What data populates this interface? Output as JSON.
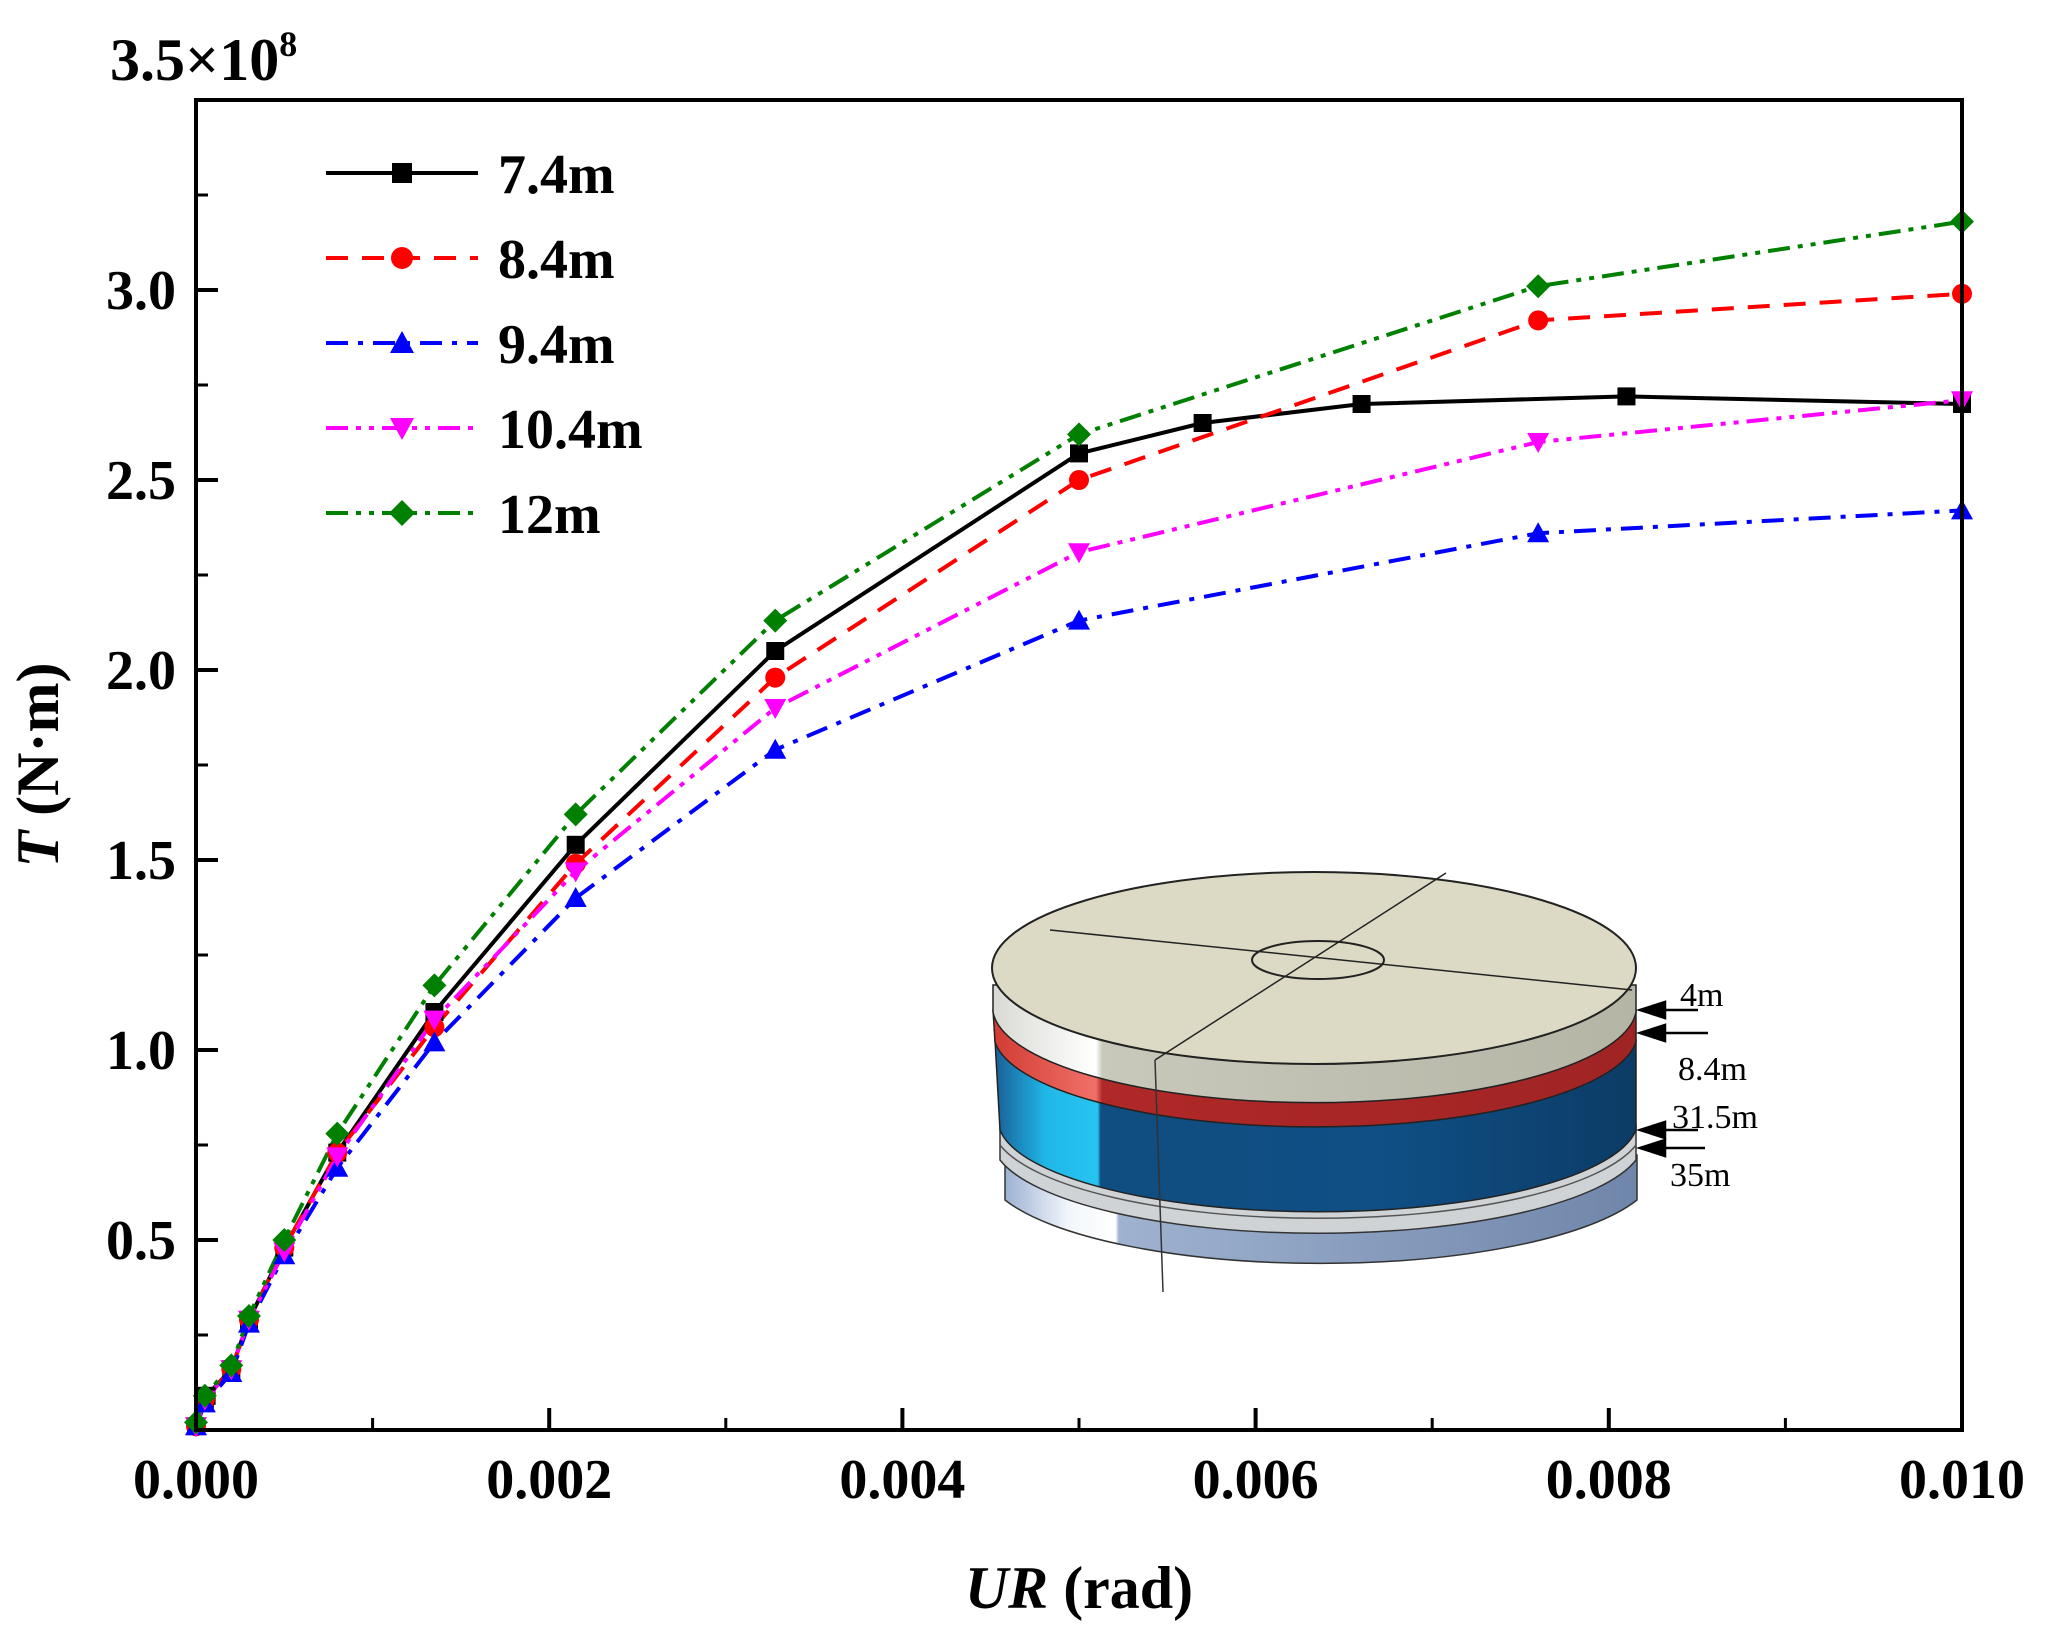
{
  "chart_data": {
    "type": "line",
    "title": "",
    "xlabel": {
      "italic": "UR",
      "rest": " (rad)"
    },
    "ylabel": {
      "italic": "T",
      "rest": " (N·m)"
    },
    "y_multiplier": {
      "base": "3.5×10",
      "exponent": "8"
    },
    "xlim": [
      0,
      0.01
    ],
    "ylim": [
      0,
      3.5
    ],
    "x_ticks": [
      "0.000",
      "0.002",
      "0.004",
      "0.006",
      "0.008",
      "0.010"
    ],
    "y_ticks": [
      "0.5",
      "1.0",
      "1.5",
      "2.0",
      "2.5",
      "3.0"
    ],
    "legend_position": "top-left",
    "series": [
      {
        "name": "7.4m",
        "color": "#000000",
        "dash": "solid",
        "marker": "square",
        "x": [
          0.0,
          5e-05,
          6e-05,
          0.0002,
          0.0003,
          0.0005,
          0.0008,
          0.00135,
          0.00215,
          0.00328,
          0.005,
          0.0057,
          0.0066,
          0.0081,
          0.01
        ],
        "y": [
          0.01,
          0.08,
          0.09,
          0.16,
          0.29,
          0.48,
          0.73,
          1.1,
          1.54,
          2.05,
          2.57,
          2.65,
          2.7,
          2.72,
          2.7
        ]
      },
      {
        "name": "8.4m",
        "color": "#ff0000",
        "dash": "dashed",
        "marker": "circle",
        "x": [
          0.0,
          5e-05,
          0.0002,
          0.0003,
          0.0005,
          0.0008,
          0.00135,
          0.00215,
          0.00328,
          0.005,
          0.0076,
          0.01
        ],
        "y": [
          0.01,
          0.08,
          0.16,
          0.29,
          0.48,
          0.73,
          1.06,
          1.49,
          1.98,
          2.5,
          2.92,
          2.99
        ]
      },
      {
        "name": "9.4m",
        "color": "#0000ff",
        "dash": "dashdot",
        "marker": "triangle-up",
        "x": [
          0.0,
          5e-05,
          0.0002,
          0.0003,
          0.0005,
          0.0008,
          0.00135,
          0.00215,
          0.00328,
          0.005,
          0.0076,
          0.01
        ],
        "y": [
          0.01,
          0.07,
          0.15,
          0.28,
          0.46,
          0.69,
          1.02,
          1.4,
          1.79,
          2.13,
          2.36,
          2.42
        ]
      },
      {
        "name": "10.4m",
        "color": "#ff00ff",
        "dash": "dashdotdot",
        "marker": "triangle-down",
        "x": [
          0.0,
          5e-05,
          0.0002,
          0.0003,
          0.0005,
          0.0008,
          0.00135,
          0.00215,
          0.00328,
          0.005,
          0.0076,
          0.01
        ],
        "y": [
          0.01,
          0.08,
          0.16,
          0.29,
          0.47,
          0.72,
          1.08,
          1.47,
          1.9,
          2.31,
          2.6,
          2.71
        ]
      },
      {
        "name": "12m",
        "color": "#008000",
        "dash": "dashdotdot",
        "marker": "diamond",
        "x": [
          0.0,
          5e-05,
          0.0002,
          0.0003,
          0.0005,
          0.0008,
          0.00135,
          0.00215,
          0.00328,
          0.005,
          0.0076,
          0.01
        ],
        "y": [
          0.02,
          0.09,
          0.17,
          0.3,
          0.5,
          0.78,
          1.17,
          1.62,
          2.13,
          2.62,
          3.01,
          3.18
        ]
      }
    ]
  },
  "inset": {
    "description_labels": [
      "4m",
      "8.4m",
      "31.5m",
      "35m"
    ],
    "colors": {
      "top": "#dcdac4",
      "band_light": "#e9e9e6",
      "band_red": "#c8302c",
      "band_blue": "#104d80",
      "band_blue_light": "#20b8e8",
      "band_grey": "#b9bdc2",
      "bottom": "#8aa0c2",
      "bottom_light": "#e8eef8"
    }
  }
}
